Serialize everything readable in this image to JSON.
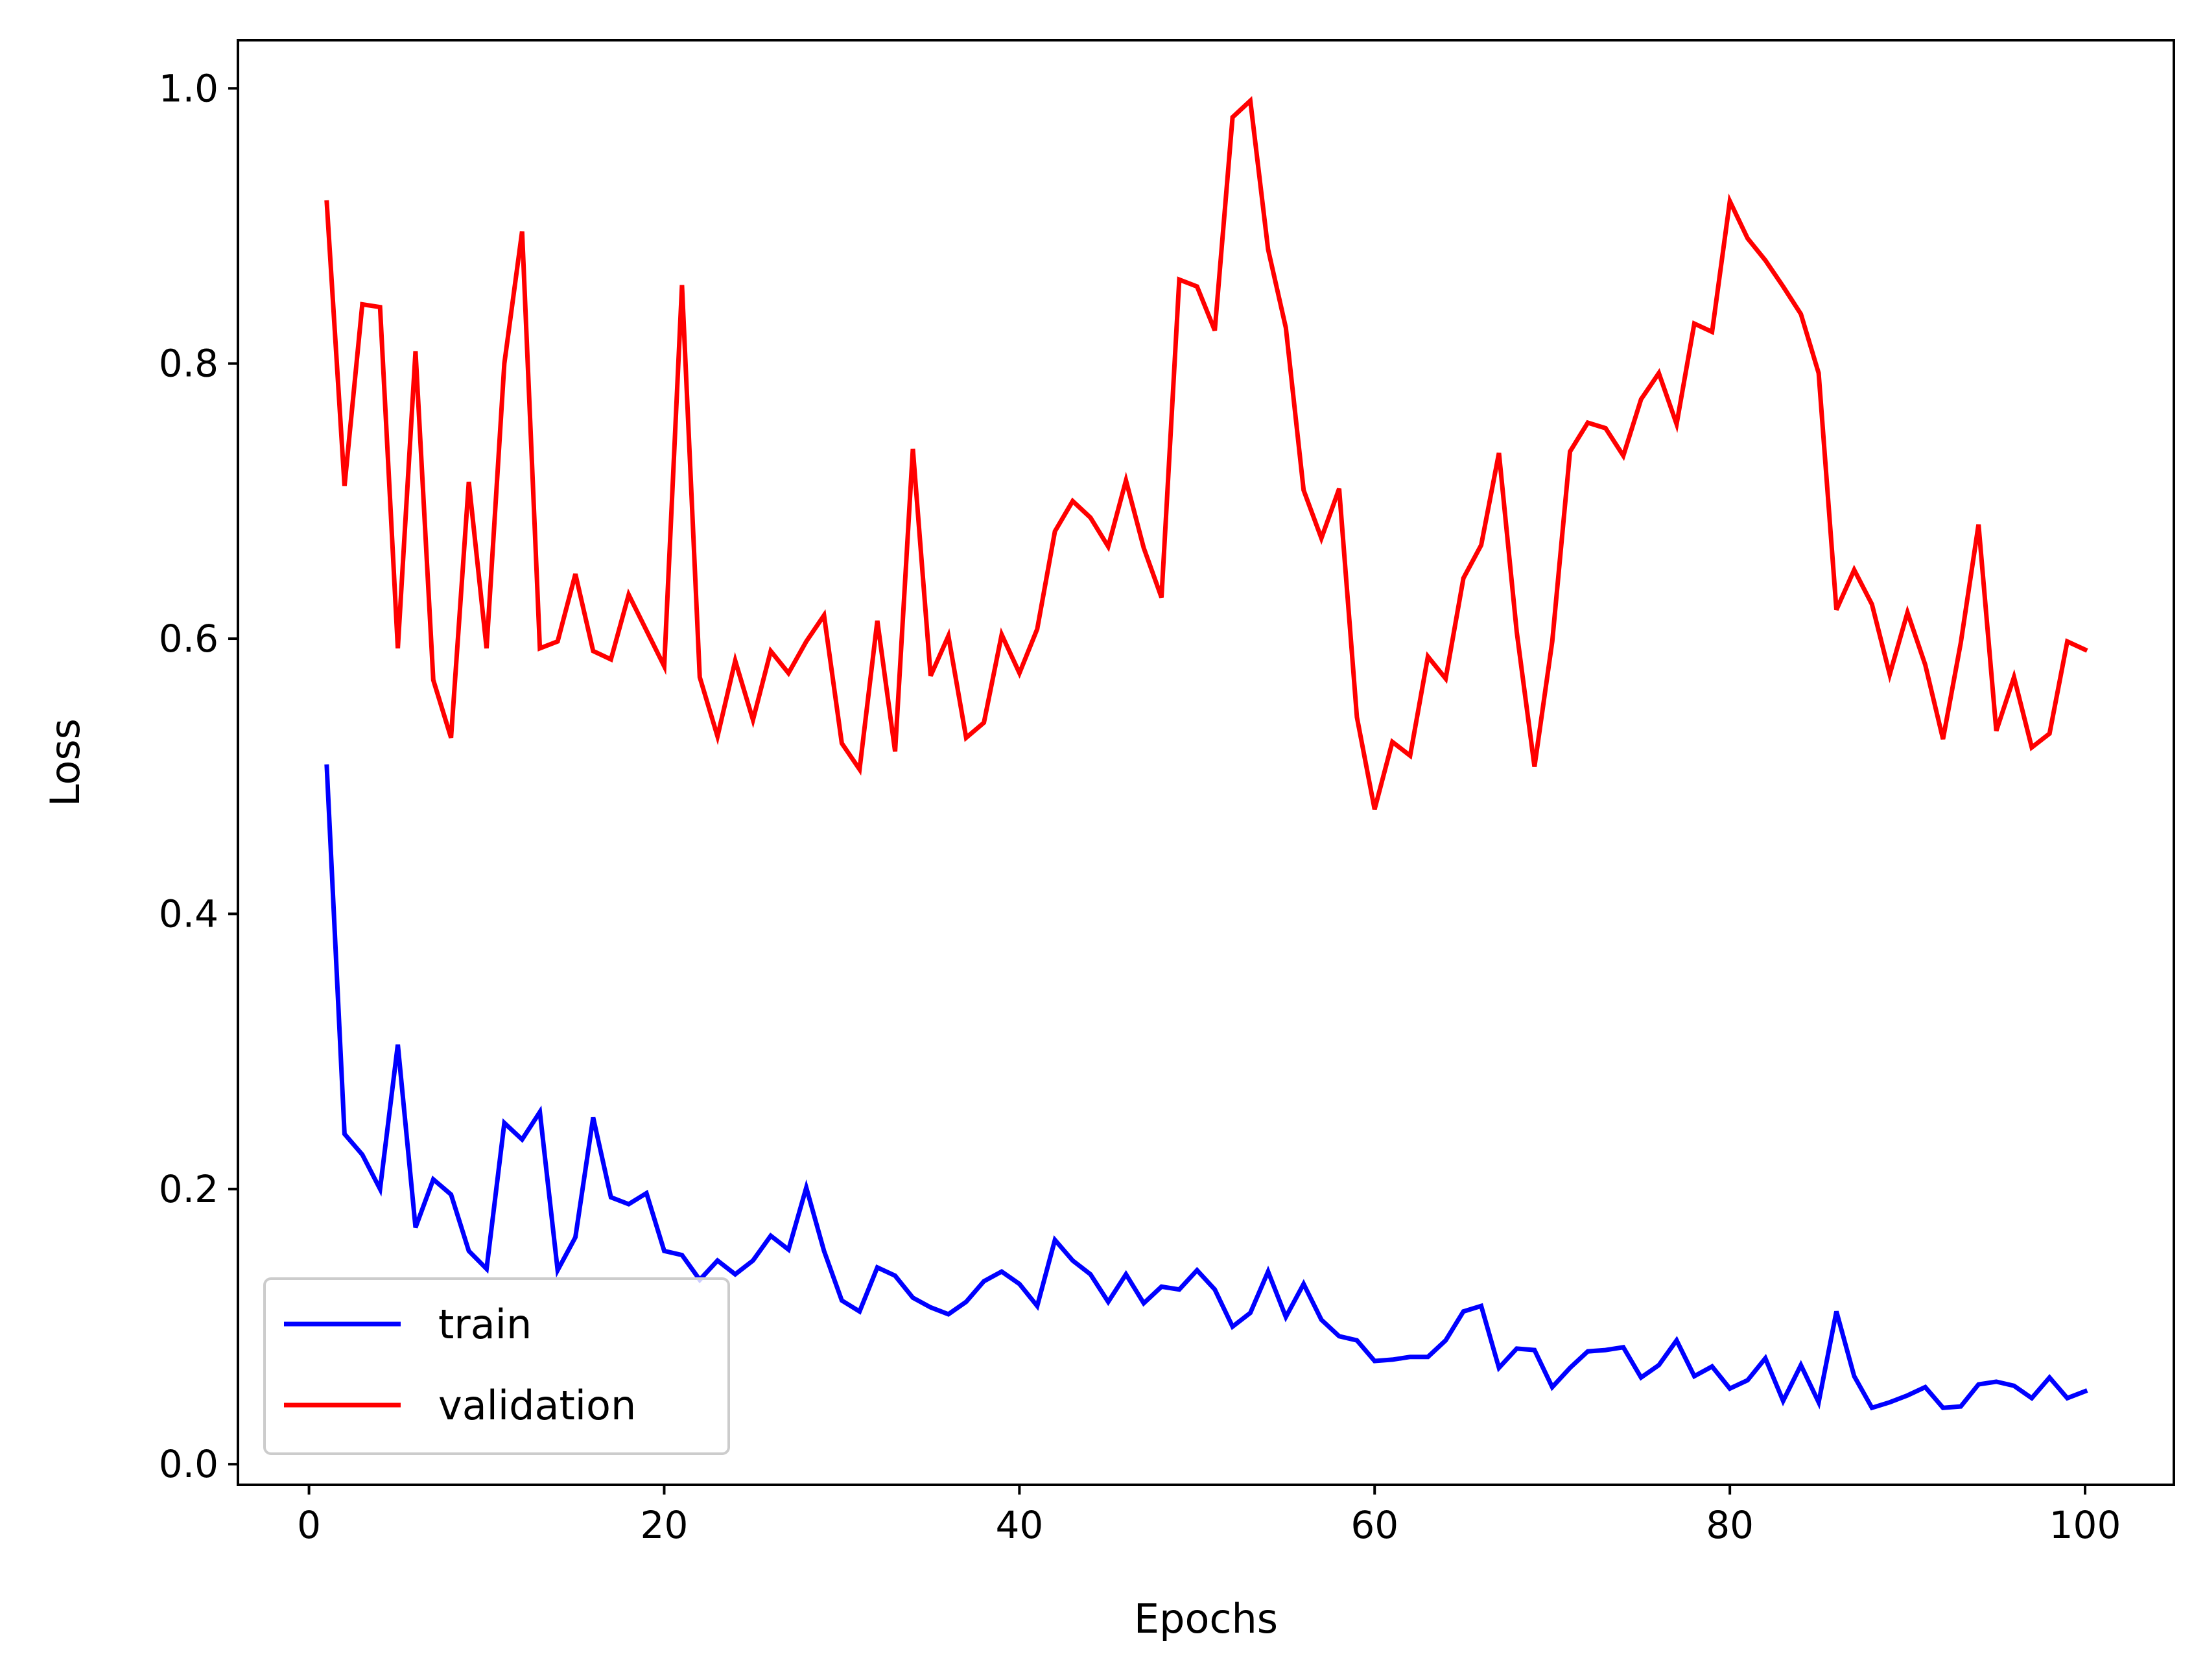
{
  "chart_data": {
    "type": "line",
    "title": "",
    "xlabel": "Epochs",
    "ylabel": "Loss",
    "xlim": [
      -4,
      105
    ],
    "ylim": [
      -0.015,
      1.035
    ],
    "xticks": [
      0,
      20,
      40,
      60,
      80,
      100
    ],
    "xtick_labels": [
      "0",
      "20",
      "40",
      "60",
      "80",
      "100"
    ],
    "yticks": [
      0.0,
      0.2,
      0.4,
      0.6,
      0.8,
      1.0
    ],
    "ytick_labels": [
      "0.0",
      "0.2",
      "0.4",
      "0.6",
      "0.8",
      "1.0"
    ],
    "grid": false,
    "legend_position": "lower-left",
    "x": [
      1,
      2,
      3,
      4,
      5,
      6,
      7,
      8,
      9,
      10,
      11,
      12,
      13,
      14,
      15,
      16,
      17,
      18,
      19,
      20,
      21,
      22,
      23,
      24,
      25,
      26,
      27,
      28,
      29,
      30,
      31,
      32,
      33,
      34,
      35,
      36,
      37,
      38,
      39,
      40,
      41,
      42,
      43,
      44,
      45,
      46,
      47,
      48,
      49,
      50,
      51,
      52,
      53,
      54,
      55,
      56,
      57,
      58,
      59,
      60,
      61,
      62,
      63,
      64,
      65,
      66,
      67,
      68,
      69,
      70,
      71,
      72,
      73,
      74,
      75,
      76,
      77,
      78,
      79,
      80,
      81,
      82,
      83,
      84,
      85,
      86,
      87,
      88,
      89,
      90,
      91,
      92,
      93,
      94,
      95,
      96,
      97,
      98,
      99,
      100
    ],
    "series": [
      {
        "name": "train",
        "color": "#0000ff",
        "values": [
          0.507,
          0.24,
          0.225,
          0.2,
          0.305,
          0.172,
          0.207,
          0.196,
          0.155,
          0.142,
          0.248,
          0.236,
          0.256,
          0.141,
          0.165,
          0.252,
          0.194,
          0.189,
          0.197,
          0.155,
          0.152,
          0.134,
          0.148,
          0.138,
          0.148,
          0.166,
          0.156,
          0.201,
          0.155,
          0.119,
          0.111,
          0.143,
          0.137,
          0.121,
          0.114,
          0.109,
          0.118,
          0.133,
          0.14,
          0.131,
          0.115,
          0.163,
          0.148,
          0.138,
          0.118,
          0.138,
          0.117,
          0.129,
          0.127,
          0.141,
          0.127,
          0.1,
          0.11,
          0.14,
          0.107,
          0.131,
          0.105,
          0.093,
          0.09,
          0.075,
          0.076,
          0.078,
          0.078,
          0.09,
          0.111,
          0.115,
          0.07,
          0.084,
          0.083,
          0.056,
          0.07,
          0.082,
          0.083,
          0.085,
          0.063,
          0.072,
          0.09,
          0.064,
          0.071,
          0.055,
          0.061,
          0.077,
          0.046,
          0.072,
          0.045,
          0.111,
          0.064,
          0.041,
          0.045,
          0.05,
          0.056,
          0.041,
          0.042,
          0.058,
          0.06,
          0.057,
          0.048,
          0.063,
          0.048,
          0.053
        ]
      },
      {
        "name": "validation",
        "color": "#ff0000",
        "values": [
          0.917,
          0.711,
          0.843,
          0.841,
          0.593,
          0.809,
          0.57,
          0.528,
          0.714,
          0.593,
          0.8,
          0.896,
          0.593,
          0.598,
          0.647,
          0.591,
          0.585,
          0.632,
          0.606,
          0.58,
          0.857,
          0.572,
          0.529,
          0.584,
          0.541,
          0.591,
          0.575,
          0.598,
          0.617,
          0.524,
          0.505,
          0.613,
          0.518,
          0.738,
          0.573,
          0.602,
          0.528,
          0.539,
          0.603,
          0.575,
          0.607,
          0.678,
          0.7,
          0.688,
          0.667,
          0.715,
          0.666,
          0.63,
          0.861,
          0.856,
          0.824,
          0.979,
          0.991,
          0.883,
          0.826,
          0.708,
          0.673,
          0.709,
          0.543,
          0.476,
          0.525,
          0.515,
          0.587,
          0.571,
          0.644,
          0.668,
          0.735,
          0.605,
          0.507,
          0.598,
          0.736,
          0.757,
          0.753,
          0.733,
          0.774,
          0.793,
          0.756,
          0.829,
          0.823,
          0.918,
          0.891,
          0.875,
          0.856,
          0.836,
          0.793,
          0.621,
          0.65,
          0.625,
          0.574,
          0.619,
          0.581,
          0.527,
          0.597,
          0.683,
          0.533,
          0.572,
          0.521,
          0.531,
          0.598,
          0.592
        ]
      }
    ]
  }
}
